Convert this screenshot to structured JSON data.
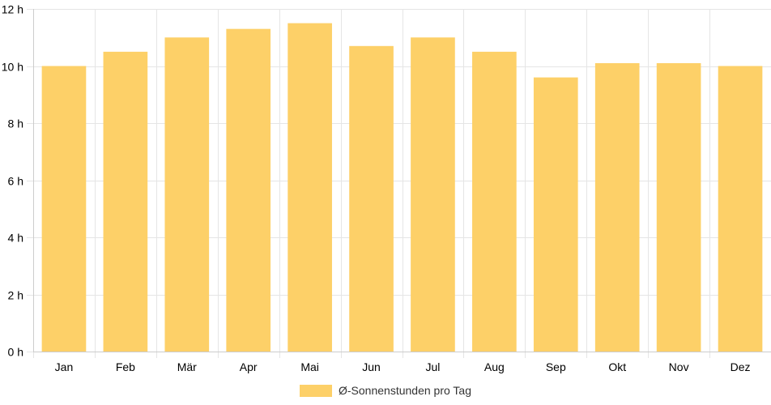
{
  "chart_data": {
    "type": "bar",
    "categories": [
      "Jan",
      "Feb",
      "Mär",
      "Apr",
      "Mai",
      "Jun",
      "Jul",
      "Aug",
      "Sep",
      "Okt",
      "Nov",
      "Dez"
    ],
    "series": [
      {
        "name": "Ø-Sonnenstunden pro Tag",
        "values": [
          10.0,
          10.5,
          11.0,
          11.3,
          11.5,
          10.7,
          11.0,
          10.5,
          9.6,
          10.1,
          10.1,
          10.0
        ],
        "color": "#fdd068"
      }
    ],
    "ylim": [
      0,
      12
    ],
    "yticks": [
      0,
      2,
      4,
      6,
      8,
      10,
      12
    ],
    "ytick_suffix": " h",
    "grid": true,
    "legend": "bottom"
  }
}
